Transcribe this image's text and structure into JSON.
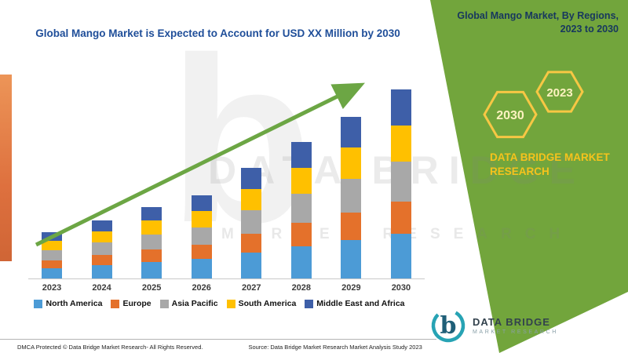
{
  "title": "Global Mango Market is Expected to Account for USD XX Million by 2030",
  "panel": {
    "heading": "Global Mango Market, By Regions, 2023 to 2030",
    "hexagon_years": [
      "2030",
      "2023"
    ],
    "brand": "DATA BRIDGE MARKET RESEARCH",
    "green": "#72A53C",
    "accent_yellow": "#F6C344",
    "heading_color": "#17375E"
  },
  "watermark": {
    "letter": "b",
    "line1": "DATA BRIDGE",
    "line2": "MARKET RESEARCH"
  },
  "logo": {
    "title": "DATA BRIDGE",
    "subtitle": "MARKET RESEARCH"
  },
  "footer": {
    "dmca": "DMCA Protected © Data Bridge Market Research- All Rights Reserved.",
    "source": "Source: Data Bridge Market Research Market Analysis Study 2023"
  },
  "chart_data": {
    "type": "bar",
    "stacked": true,
    "title": "Global Mango Market is Expected to Account for USD XX Million by 2030",
    "xlabel": "",
    "ylabel": "",
    "categories": [
      "2023",
      "2024",
      "2025",
      "2026",
      "2027",
      "2028",
      "2029",
      "2030"
    ],
    "series": [
      {
        "name": "North America",
        "color": "#4C9BD6",
        "values": [
          1.4,
          1.8,
          2.2,
          2.6,
          3.4,
          4.2,
          5.0,
          5.8
        ]
      },
      {
        "name": "Europe",
        "color": "#E4712B",
        "values": [
          1.0,
          1.3,
          1.6,
          1.8,
          2.4,
          3.0,
          3.5,
          4.1
        ]
      },
      {
        "name": "Asia Pacific",
        "color": "#A8A8A8",
        "values": [
          1.3,
          1.6,
          1.9,
          2.2,
          3.0,
          3.7,
          4.3,
          5.1
        ]
      },
      {
        "name": "South America",
        "color": "#FFC000",
        "values": [
          1.2,
          1.4,
          1.8,
          2.1,
          2.7,
          3.3,
          4.0,
          4.6
        ]
      },
      {
        "name": "Middle East and Africa",
        "color": "#3E5FA8",
        "values": [
          1.1,
          1.4,
          1.7,
          2.0,
          2.7,
          3.3,
          3.9,
          4.6
        ]
      }
    ],
    "ylim": [
      0,
      26
    ],
    "grid": false,
    "legend_position": "bottom",
    "trend_arrow": true,
    "arrow_color": "#6CA644"
  }
}
